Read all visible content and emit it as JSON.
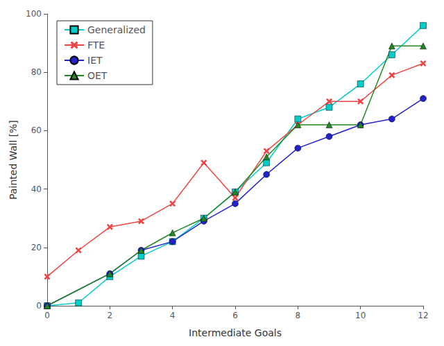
{
  "chart_data": {
    "type": "line",
    "x": [
      0,
      1,
      2,
      3,
      4,
      5,
      6,
      7,
      8,
      9,
      10,
      11,
      12
    ],
    "series": [
      {
        "name": "Generalized",
        "color": "#00CCCC",
        "marker": "square",
        "values": [
          0,
          1,
          10,
          17,
          22,
          30,
          39,
          49,
          64,
          68,
          76,
          86,
          96
        ]
      },
      {
        "name": "FTE",
        "color": "#EE4444",
        "marker": "x",
        "values": [
          10,
          19,
          27,
          29,
          35,
          49,
          37,
          53,
          62,
          70,
          70,
          79,
          83
        ]
      },
      {
        "name": "IET",
        "color": "#2222CC",
        "marker": "circle",
        "values": [
          0,
          null,
          11,
          19,
          22,
          29,
          35,
          45,
          54,
          58,
          62,
          64,
          71
        ]
      },
      {
        "name": "OET",
        "color": "#228822",
        "marker": "triangle",
        "values": [
          0,
          null,
          11,
          19,
          25,
          30,
          39,
          51,
          62,
          62,
          62,
          89,
          89
        ]
      }
    ],
    "xlabel": "Intermediate Goals",
    "ylabel": "Painted Wall [%]",
    "xlim": [
      0,
      12
    ],
    "ylim": [
      0,
      100
    ],
    "xticks": [
      0,
      2,
      4,
      6,
      8,
      10,
      12
    ],
    "yticks": [
      0,
      20,
      40,
      60,
      80,
      100
    ],
    "grid": false,
    "legend": "upper left"
  }
}
